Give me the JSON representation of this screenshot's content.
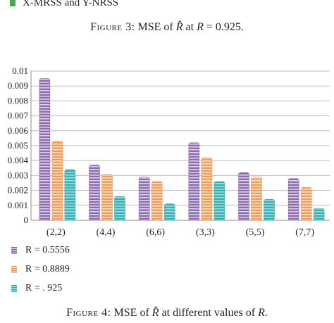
{
  "top_legend": {
    "label": "X-MRSS and Y-NRSS",
    "color": "#4aa84a"
  },
  "caption3": {
    "prefix": "Figure 3:",
    "text1": "MSE of ",
    "symbol": "R̂",
    "text2": " at ",
    "var": "R",
    "text3": " = 0.925."
  },
  "caption4": {
    "prefix": "Figure 4:",
    "text1": "MSE of ",
    "symbol": "R̂",
    "text2": " at different values of ",
    "var": "R",
    "text3": "."
  },
  "chart_data": {
    "type": "bar",
    "categories": [
      "(2,2)",
      "(4,4)",
      "(6,6)",
      "(3,3)",
      "(5,5)",
      "(7,7)"
    ],
    "series": [
      {
        "name": "R = 0.5556",
        "values": [
          0.0095,
          0.0037,
          0.0029,
          0.0052,
          0.0032,
          0.0028
        ],
        "color": "#8e6ab5"
      },
      {
        "name": "R = 0.8889",
        "values": [
          0.0053,
          0.0031,
          0.0026,
          0.0042,
          0.0029,
          0.0022
        ],
        "color": "#f59a4f"
      },
      {
        "name": "R = . 925",
        "values": [
          0.0034,
          0.0016,
          0.0011,
          0.0026,
          0.0014,
          0.0008
        ],
        "color": "#2fb4b5"
      }
    ],
    "yticks": [
      "0",
      "0.001",
      "0.002",
      "0.003",
      "0.004",
      "0.005",
      "0.006",
      "0.007",
      "0.008",
      "0.009",
      "0.01"
    ],
    "ylim": [
      0,
      0.01
    ],
    "grid": true,
    "legend_position": "bottom-left"
  }
}
